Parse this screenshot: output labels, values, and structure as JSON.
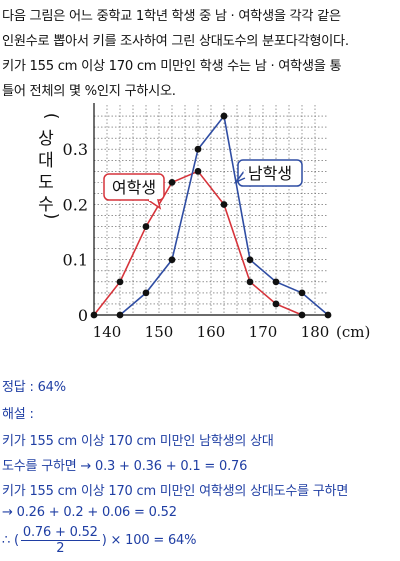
{
  "problem": {
    "lines": [
      "다음 그림은 어느 중학교 1학년 학생 중 남 · 여학생을 각각 같은",
      "인원수로 뽑아서 키를 조사하여 그린 상대도수의 분포다각형이다.",
      "키가 155 cm 이상 170 cm 미만인 학생 수는 남 · 여학생을 통",
      "틀어 전체의 몇 %인지 구하시오."
    ]
  },
  "chart_data": {
    "type": "line",
    "ylabel": "(상대도수)",
    "xunit": "(cm)",
    "xticks": [
      140,
      150,
      160,
      170,
      180
    ],
    "yticks": [
      "0",
      "0.1",
      "0.2",
      "0.3"
    ],
    "xlim": [
      137.5,
      182.5
    ],
    "ylim": [
      0,
      0.38
    ],
    "grid": true,
    "series": [
      {
        "name": "여학생",
        "color": "#d6343b",
        "x": [
          137.5,
          142.5,
          147.5,
          152.5,
          157.5,
          162.5,
          167.5,
          172.5,
          177.5
        ],
        "y": [
          0,
          0.06,
          0.16,
          0.24,
          0.26,
          0.2,
          0.06,
          0.02,
          0
        ]
      },
      {
        "name": "남학생",
        "color": "#2f4da3",
        "x": [
          142.5,
          147.5,
          152.5,
          157.5,
          162.5,
          167.5,
          172.5,
          177.5,
          182.5
        ],
        "y": [
          0,
          0.04,
          0.1,
          0.3,
          0.36,
          0.1,
          0.06,
          0.04,
          0
        ]
      }
    ]
  },
  "solution": {
    "answer": "정답 : 64%",
    "explain_label": "해설 :",
    "line1": "키가 155 cm 이상 170 cm 미만인 남학생의 상대",
    "line2": "도수를 구하면 → 0.3 + 0.36 + 0.1 = 0.76",
    "line3": "키가 155 cm 이상 170 cm 미만인 여학생의 상대도수를 구하면",
    "line4": "→ 0.26 + 0.2 + 0.06 = 0.52",
    "final_prefix": "∴ (",
    "final_num": "0.76 + 0.52",
    "final_den": "2",
    "final_suffix": ") × 100 = 64%"
  }
}
